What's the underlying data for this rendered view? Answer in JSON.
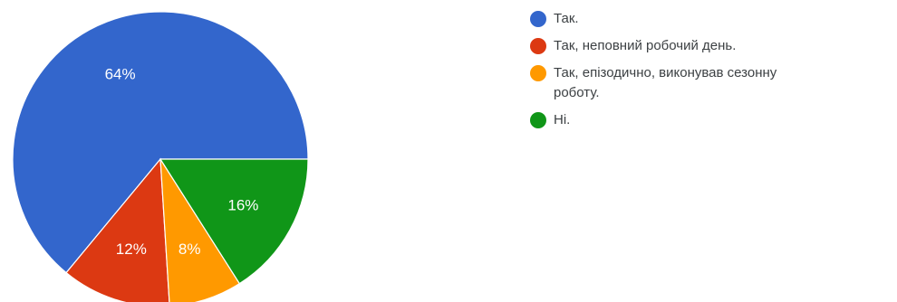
{
  "chart_data": {
    "type": "pie",
    "title": "",
    "slices": [
      {
        "label": "Так.",
        "value": 64,
        "display": "64%",
        "color": "#3366cc"
      },
      {
        "label": "Так, неповний робочий день.",
        "value": 12,
        "display": "12%",
        "color": "#dc3912"
      },
      {
        "label": "Так, епізодично, виконував сезонну роботу.",
        "value": 8,
        "display": "8%",
        "color": "#ff9900"
      },
      {
        "label": "Ні.",
        "value": 16,
        "display": "16%",
        "color": "#109618"
      }
    ],
    "legend_position": "right"
  }
}
